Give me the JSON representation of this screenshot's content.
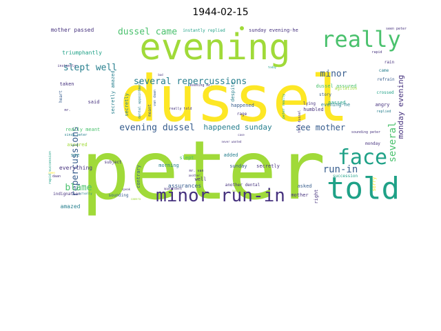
{
  "title": "1944-02-15",
  "palette": {
    "yellow": "#fde725",
    "lime": "#a0da39",
    "green": "#4ac16d",
    "teal": "#1fa187",
    "teal2": "#277f8e",
    "blue": "#365c8d",
    "indigo": "#46327e",
    "purple": "#440154"
  },
  "words": [
    {
      "text": "peter",
      "color": "lime"
    },
    {
      "text": "dussel",
      "color": "yellow"
    },
    {
      "text": "evening",
      "color": "lime"
    },
    {
      "text": "told",
      "color": "teal"
    },
    {
      "text": "really",
      "color": "green"
    },
    {
      "text": "face",
      "color": "teal"
    },
    {
      "text": "minor run-in",
      "color": "indigo"
    },
    {
      "text": "several repercussions",
      "color": "teal2"
    },
    {
      "text": "slept well",
      "color": "teal2"
    },
    {
      "text": "dussel came",
      "color": "green"
    },
    {
      "text": "minor",
      "color": "blue"
    },
    {
      "text": "evening dussel",
      "color": "blue"
    },
    {
      "text": "happened sunday",
      "color": "teal2"
    },
    {
      "text": "see mother",
      "color": "blue"
    },
    {
      "text": "repercussions",
      "color": "blue"
    },
    {
      "text": "run-in",
      "color": "blue"
    },
    {
      "text": "several",
      "color": "green"
    },
    {
      "text": "blame",
      "color": "green"
    },
    {
      "text": "monday evening",
      "color": "indigo"
    },
    {
      "text": "mother passed",
      "color": "indigo"
    },
    {
      "text": "instantly replied",
      "color": "teal"
    },
    {
      "text": "sunday evening-he",
      "color": "indigo"
    },
    {
      "text": "triumphantly",
      "color": "teal"
    },
    {
      "text": "taken",
      "color": "indigo"
    },
    {
      "text": "secretly amazed",
      "color": "teal2"
    },
    {
      "text": "dussel assured",
      "color": "green"
    },
    {
      "text": "story",
      "color": "blue"
    },
    {
      "text": "passed",
      "color": "teal"
    },
    {
      "text": "came",
      "color": "teal2"
    },
    {
      "text": "refrain",
      "color": "blue"
    },
    {
      "text": "crossed",
      "color": "teal"
    },
    {
      "text": "angry",
      "color": "indigo"
    },
    {
      "text": "replied",
      "color": "teal2"
    },
    {
      "text": "humbled",
      "color": "indigo"
    },
    {
      "text": "secretly",
      "color": "teal2"
    },
    {
      "text": "meant",
      "color": "blue"
    },
    {
      "text": "said",
      "color": "indigo"
    },
    {
      "text": "really meant",
      "color": "green"
    },
    {
      "text": "assured",
      "color": "lime"
    },
    {
      "text": "see",
      "color": "teal2"
    },
    {
      "text": "everything",
      "color": "indigo"
    },
    {
      "text": "amazed",
      "color": "teal2"
    },
    {
      "text": "contrary",
      "color": "blue"
    },
    {
      "text": "morning",
      "color": "teal2"
    },
    {
      "text": "assurances",
      "color": "blue"
    },
    {
      "text": "slept",
      "color": "green"
    },
    {
      "text": "well",
      "color": "indigo"
    },
    {
      "text": "added",
      "color": "teal2"
    },
    {
      "text": "sunday",
      "color": "blue"
    },
    {
      "text": "secretly",
      "color": "indigo"
    },
    {
      "text": "asked",
      "color": "blue"
    },
    {
      "text": "mother",
      "color": "indigo"
    },
    {
      "text": "right",
      "color": "indigo"
    },
    {
      "text": "despite",
      "color": "teal2"
    },
    {
      "text": "happened",
      "color": "blue"
    },
    {
      "text": "rage",
      "color": "indigo"
    },
    {
      "text": "evening-he",
      "color": "teal2"
    },
    {
      "text": "monday",
      "color": "indigo"
    },
    {
      "text": "lying",
      "color": "indigo"
    },
    {
      "text": "sorry",
      "color": "yellow"
    },
    {
      "text": "succession",
      "color": "teal"
    },
    {
      "text": "agitation",
      "color": "lime"
    },
    {
      "text": "rain",
      "color": "indigo"
    },
    {
      "text": "subject",
      "color": "indigo"
    },
    {
      "text": "heart",
      "color": "blue"
    },
    {
      "text": "sounding",
      "color": "blue"
    },
    {
      "text": "another dental",
      "color": "indigo"
    },
    {
      "text": "sounding peter",
      "color": "indigo"
    },
    {
      "text": "seen peter",
      "color": "indigo"
    },
    {
      "text": "peter really",
      "color": "teal"
    },
    {
      "text": "told dussel",
      "color": "indigo"
    },
    {
      "text": "rapid",
      "color": "indigo"
    },
    {
      "text": "really told",
      "color": "indigo"
    },
    {
      "text": "indignation",
      "color": "indigo"
    },
    {
      "text": "since peter",
      "color": "teal2"
    },
    {
      "text": "rapid succession",
      "color": "teal"
    },
    {
      "text": "instantly",
      "color": "indigo"
    },
    {
      "text": "dental appointment",
      "color": "teal2"
    },
    {
      "text": "van daan",
      "color": "blue"
    },
    {
      "text": "never wanted",
      "color": "indigo"
    },
    {
      "text": "appointment",
      "color": "indigo"
    },
    {
      "text": "another",
      "color": "indigo"
    },
    {
      "text": "daan",
      "color": "indigo"
    },
    {
      "text": "evening mr.",
      "color": "indigo"
    },
    {
      "text": "mr. van",
      "color": "indigo"
    },
    {
      "text": "case",
      "color": "indigo"
    },
    {
      "text": "much",
      "color": "lime"
    },
    {
      "text": "speak",
      "color": "indigo"
    },
    {
      "text": "camera",
      "color": "lime"
    },
    {
      "text": "actually",
      "color": "teal2"
    },
    {
      "text": "mr.",
      "color": "indigo"
    },
    {
      "text": "seen",
      "color": "yellow"
    },
    {
      "text": "bad",
      "color": "indigo"
    },
    {
      "text": "today",
      "color": "teal"
    }
  ]
}
